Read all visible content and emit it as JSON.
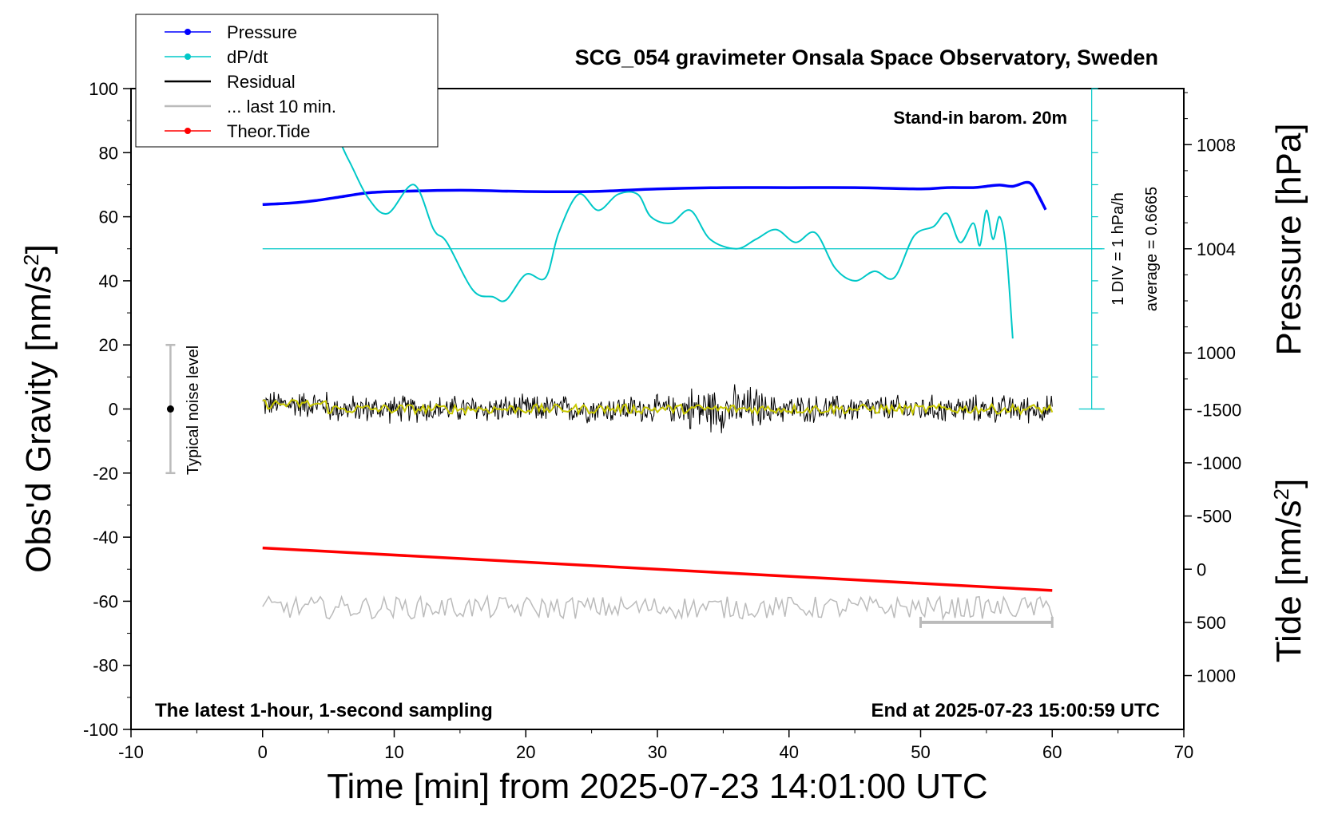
{
  "chart_data": {
    "type": "line",
    "title": "SCG_054 gravimeter Onsala Space Observatory, Sweden",
    "xlabel": "Time [min] from 2025-07-23 14:01:00 UTC",
    "ylabel_left": "Obs'd Gravity [nm/s",
    "ylabel_left_sup": "2",
    "ylabel_left_close": "]",
    "ylabel_right_pressure": "Pressure [hPa]",
    "ylabel_right_tide": "Tide [nm/s",
    "ylabel_right_tide_sup": "2",
    "ylabel_right_tide_close": "]",
    "xlim": [
      -10,
      70
    ],
    "ylim": [
      -100,
      100
    ],
    "pressure_lim": [
      1000,
      1008
    ],
    "tide_lim": [
      -1500,
      1000
    ],
    "x_ticks": [
      "-10",
      "0",
      "10",
      "20",
      "30",
      "40",
      "50",
      "60",
      "70"
    ],
    "y_ticks": [
      "100",
      "80",
      "60",
      "40",
      "20",
      "0",
      "-20",
      "-40",
      "-60",
      "-80",
      "-100"
    ],
    "pressure_ticks": [
      "1008",
      "1004",
      "1000"
    ],
    "tide_ticks": [
      "1000",
      "500",
      "0",
      "-500",
      "-1000",
      "-1500"
    ],
    "legend": {
      "placement": "top-left",
      "entries": [
        {
          "label": "Pressure",
          "color": "#0000ff"
        },
        {
          "label": "dP/dt",
          "color": "#00c8c8"
        },
        {
          "label": "Residual",
          "color": "#000000"
        },
        {
          "label": "... last 10 min.",
          "color": "#bbbbbb"
        },
        {
          "label": "Theor.Tide",
          "color": "#ff0000"
        }
      ]
    },
    "annotations": {
      "stand_in": "Stand-in barom. 20m",
      "latest": "The latest 1-hour, 1-second sampling",
      "end_at": "End at 2025-07-23 15:00:59 UTC",
      "noise": "Typical noise level",
      "div_label": "1 DIV = 1 hPa/h",
      "average": "average = 0.6665"
    },
    "colors": {
      "pressure": "#0000ff",
      "dpdt": "#00c8c8",
      "residual": "#000000",
      "residual_smooth": "#c8c800",
      "last10": "#bbbbbb",
      "tide": "#ff0000"
    },
    "series": [
      {
        "name": "Pressure",
        "axis": "pressure",
        "x": [
          0,
          2,
          4,
          6,
          8,
          10,
          15,
          20,
          25,
          30,
          35,
          40,
          45,
          50,
          52,
          54,
          55,
          56,
          57,
          58,
          58.5,
          59,
          59.5
        ],
        "y": [
          1005.7,
          1005.75,
          1005.85,
          1006.0,
          1006.15,
          1006.2,
          1006.25,
          1006.2,
          1006.2,
          1006.3,
          1006.35,
          1006.35,
          1006.35,
          1006.3,
          1006.35,
          1006.35,
          1006.4,
          1006.45,
          1006.4,
          1006.55,
          1006.45,
          1006.0,
          1005.5
        ]
      },
      {
        "name": "dP/dt",
        "axis": "gravity",
        "x": [
          3,
          4.5,
          6.5,
          8,
          9.5,
          11.5,
          13,
          14,
          16,
          17.5,
          18.5,
          20,
          21.5,
          22.5,
          24,
          25.5,
          27,
          28.5,
          29.5,
          31,
          32.5,
          34,
          36,
          37.5,
          39,
          40.5,
          42,
          43.5,
          45,
          46.5,
          48,
          49.5,
          51,
          52,
          53,
          54,
          54.5,
          55,
          55.5,
          56,
          56.5,
          57
        ],
        "y": [
          82,
          93,
          78,
          66,
          61,
          70,
          56,
          52,
          37,
          35,
          34,
          42,
          41,
          55,
          67,
          62,
          67,
          67,
          60,
          58,
          62,
          53,
          50,
          53,
          56,
          52,
          55,
          44,
          40,
          43,
          41,
          54,
          57,
          61,
          52,
          58,
          51,
          62,
          53,
          60,
          50,
          22
        ]
      },
      {
        "name": "Residual",
        "axis": "gravity",
        "x_range": [
          0,
          60
        ],
        "y_level": 0,
        "noise_amplitude": 5
      },
      {
        "name": "... last 10 min.",
        "axis": "gravity",
        "x_range": [
          0,
          60
        ],
        "y_level": -62,
        "noise_amplitude": 3.5
      },
      {
        "name": "Theor.Tide",
        "axis": "tide",
        "x": [
          0,
          60
        ],
        "y": [
          -200,
          200
        ]
      }
    ],
    "noise_bar": {
      "x": -7,
      "y_center": 0,
      "y_range": [
        -20,
        20
      ]
    },
    "last10_marker": {
      "x_range": [
        50,
        60
      ],
      "tide_level": 500
    },
    "dpdt_scale": {
      "x": 63,
      "baseline_y": 50,
      "top_y": 100,
      "bottom_y": 0
    }
  }
}
